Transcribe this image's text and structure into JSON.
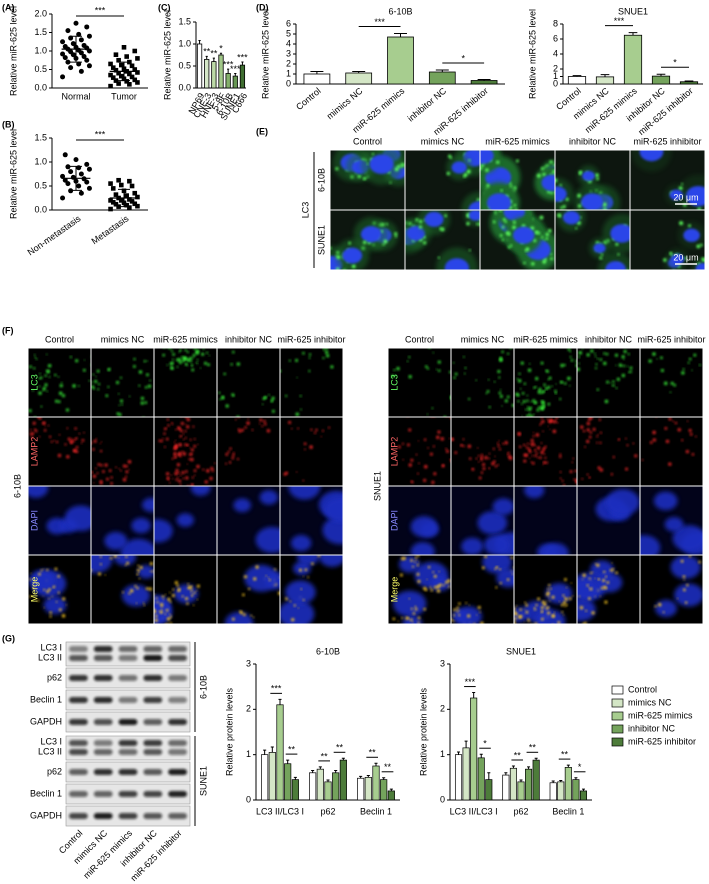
{
  "panel_labels": [
    "(A)",
    "(B)",
    "(C)",
    "(D)",
    "(E)",
    "(F)",
    "(G)"
  ],
  "chart_data": [
    {
      "type": "strip",
      "ylabel": "Relative miR-625 level",
      "categories": [
        "Normal",
        "Tumor"
      ],
      "groups": [
        {
          "marker": "circle",
          "mean": 1.05,
          "sd": 0.35,
          "values": [
            0.3,
            0.45,
            0.55,
            0.6,
            0.65,
            0.7,
            0.75,
            0.8,
            0.82,
            0.85,
            0.9,
            0.92,
            0.95,
            0.98,
            1.0,
            1.02,
            1.05,
            1.08,
            1.1,
            1.12,
            1.15,
            1.2,
            1.25,
            1.3,
            1.35,
            1.4,
            1.45,
            1.55,
            1.65,
            1.75
          ]
        },
        {
          "marker": "square",
          "mean": 0.45,
          "sd": 0.25,
          "values": [
            0.05,
            0.1,
            0.12,
            0.15,
            0.18,
            0.2,
            0.22,
            0.25,
            0.28,
            0.3,
            0.32,
            0.35,
            0.38,
            0.4,
            0.42,
            0.45,
            0.48,
            0.5,
            0.52,
            0.55,
            0.6,
            0.62,
            0.65,
            0.7,
            0.75,
            0.8,
            0.85,
            0.9,
            1.0,
            1.1
          ]
        }
      ],
      "significance": "***",
      "color": "#000000",
      "ylim": [
        0,
        2
      ],
      "yticks": [
        {
          "value": 0,
          "label": "0.0"
        },
        0.5,
        {
          "value": 1,
          "label": "1.0"
        },
        1.5,
        {
          "value": 2,
          "label": "2.0"
        }
      ]
    },
    {
      "type": "strip",
      "ylabel": "Relative miR-625 level",
      "categories": [
        "Non-metastasis",
        "Metastasis"
      ],
      "groups": [
        {
          "marker": "circle",
          "mean": 0.66,
          "sd": 0.25,
          "values": [
            0.25,
            0.35,
            0.4,
            0.45,
            0.5,
            0.55,
            0.58,
            0.6,
            0.62,
            0.65,
            0.68,
            0.7,
            0.75,
            0.8,
            0.85,
            0.88,
            0.9,
            0.95,
            1.05,
            1.15
          ]
        },
        {
          "marker": "square",
          "mean": 0.25,
          "sd": 0.18,
          "values": [
            0.02,
            0.05,
            0.07,
            0.08,
            0.1,
            0.12,
            0.13,
            0.15,
            0.16,
            0.18,
            0.2,
            0.2,
            0.22,
            0.25,
            0.27,
            0.3,
            0.32,
            0.35,
            0.4,
            0.45,
            0.5,
            0.52,
            0.55,
            0.6,
            0.62
          ]
        }
      ],
      "significance": "***",
      "color": "#000000",
      "ylim": [
        0,
        1.5
      ],
      "yticks": [
        {
          "value": 0,
          "label": "0.0"
        },
        0.5,
        {
          "value": 1,
          "label": "1.0"
        },
        1.5
      ]
    },
    {
      "type": "bar",
      "ylabel": "Relative miR-625 level",
      "categories": [
        "NP69",
        "CNE-3",
        "HNE-3",
        "5-8F",
        "6-10B",
        "SUNE1",
        "C666"
      ],
      "values": [
        1.0,
        0.65,
        0.6,
        0.75,
        0.33,
        0.27,
        0.52
      ],
      "errors": [
        0.08,
        0.07,
        0.08,
        0.04,
        0.1,
        0.06,
        0.07
      ],
      "stars": [
        null,
        "**",
        "**",
        "*",
        "***",
        "***",
        "***"
      ],
      "colors": [
        "#ffffff",
        "#d6e8c8",
        "#bcd9a6",
        "#a1c788",
        "#84b06b",
        "#679653",
        "#3f6e31"
      ],
      "ylim": [
        0,
        1.5
      ],
      "yticks": [
        {
          "value": 0,
          "label": "0.0"
        },
        0.5,
        {
          "value": 1,
          "label": "1.0"
        },
        1.5
      ]
    },
    {
      "type": "bar",
      "title": "6-10B",
      "ylabel": "Relative miR-625 level",
      "categories": [
        "Control",
        "mimics NC",
        "miR-625 mimics",
        "inhibitor NC",
        "miR-625 inhibitor"
      ],
      "values": [
        1.0,
        1.1,
        4.7,
        1.2,
        0.35
      ],
      "errors": [
        0.25,
        0.15,
        0.35,
        0.2,
        0.1
      ],
      "brackets": [
        {
          "between": [
            1,
            2
          ],
          "label": "***"
        },
        {
          "between": [
            3,
            4
          ],
          "label": "*"
        }
      ],
      "colors": [
        "#ffffff",
        "#d4e6c6",
        "#a7cd8f",
        "#74a35c",
        "#4d7c3a"
      ],
      "ylim": [
        0,
        6
      ],
      "yticks": [
        0,
        1,
        2,
        3,
        4,
        5,
        6
      ]
    },
    {
      "type": "bar",
      "title": "SNUE1",
      "ylabel": "Relative miR-625 level",
      "categories": [
        "Control",
        "mimics NC",
        "miR-625 mimics",
        "inhibitor NC",
        "miR-625 inhibitor"
      ],
      "values": [
        1.0,
        0.95,
        6.5,
        1.05,
        0.3
      ],
      "errors": [
        0.12,
        0.3,
        0.35,
        0.25,
        0.1
      ],
      "brackets": [
        {
          "between": [
            1,
            2
          ],
          "label": "***"
        },
        {
          "between": [
            3,
            4
          ],
          "label": "*"
        }
      ],
      "colors": [
        "#ffffff",
        "#d4e6c6",
        "#a7cd8f",
        "#74a35c",
        "#4d7c3a"
      ],
      "ylim": [
        0,
        8
      ],
      "yticks": [
        0,
        1,
        2,
        4,
        6,
        8
      ]
    },
    {
      "type": "grouped_bar",
      "title": "6-10B",
      "ylabel": "Relative protein levels",
      "categories": [
        "LC3 II/LC3 I",
        "p62",
        "Beclin 1"
      ],
      "series": [
        {
          "color": "#ffffff",
          "values": [
            1.0,
            0.6,
            0.48
          ],
          "errors": [
            0.1,
            0.05,
            0.04
          ]
        },
        {
          "color": "#d4e6c6",
          "values": [
            1.05,
            0.68,
            0.5
          ],
          "errors": [
            0.12,
            0.05,
            0.04
          ]
        },
        {
          "color": "#a7cd8f",
          "values": [
            2.1,
            0.4,
            0.75
          ],
          "errors": [
            0.12,
            0.04,
            0.06
          ]
        },
        {
          "color": "#74a35c",
          "values": [
            0.8,
            0.6,
            0.45
          ],
          "errors": [
            0.08,
            0.05,
            0.04
          ]
        },
        {
          "color": "#4d7c3a",
          "values": [
            0.45,
            0.88,
            0.2
          ],
          "errors": [
            0.05,
            0.04,
            0.04
          ]
        }
      ],
      "brackets": [
        {
          "category": 0,
          "between": [
            1,
            2
          ],
          "label": "***"
        },
        {
          "category": 0,
          "between": [
            3,
            4
          ],
          "label": "**"
        },
        {
          "category": 1,
          "between": [
            1,
            2
          ],
          "label": "**"
        },
        {
          "category": 1,
          "between": [
            3,
            4
          ],
          "label": "**"
        },
        {
          "category": 2,
          "between": [
            1,
            2
          ],
          "label": "**"
        },
        {
          "category": 2,
          "between": [
            3,
            4
          ],
          "label": "**"
        }
      ],
      "ylim": [
        0,
        3
      ],
      "yticks": [
        0,
        1,
        2,
        3
      ]
    },
    {
      "type": "grouped_bar",
      "title": "SNUE1",
      "ylabel": "Relative protein levels",
      "categories": [
        "LC3 II/LC3 I",
        "p62",
        "Beclin 1"
      ],
      "series": [
        {
          "name": "Control",
          "color": "#ffffff",
          "values": [
            1.0,
            0.55,
            0.38
          ],
          "errors": [
            0.06,
            0.05,
            0.04
          ]
        },
        {
          "name": "mimics NC",
          "color": "#d4e6c6",
          "values": [
            1.15,
            0.7,
            0.4
          ],
          "errors": [
            0.15,
            0.05,
            0.03
          ]
        },
        {
          "name": "miR-625 mimics",
          "color": "#a7cd8f",
          "values": [
            2.25,
            0.4,
            0.72
          ],
          "errors": [
            0.12,
            0.04,
            0.05
          ]
        },
        {
          "name": "inhibitor NC",
          "color": "#74a35c",
          "values": [
            0.93,
            0.68,
            0.45
          ],
          "errors": [
            0.08,
            0.05,
            0.04
          ]
        },
        {
          "name": "miR-625 inhibitor",
          "color": "#4d7c3a",
          "values": [
            0.45,
            0.88,
            0.2
          ],
          "errors": [
            0.15,
            0.04,
            0.04
          ]
        }
      ],
      "brackets": [
        {
          "category": 0,
          "between": [
            1,
            2
          ],
          "label": "***"
        },
        {
          "category": 0,
          "between": [
            3,
            4
          ],
          "label": "*"
        },
        {
          "category": 1,
          "between": [
            1,
            2
          ],
          "label": "**"
        },
        {
          "category": 1,
          "between": [
            3,
            4
          ],
          "label": "**"
        },
        {
          "category": 2,
          "between": [
            1,
            2
          ],
          "label": "**"
        },
        {
          "category": 2,
          "between": [
            3,
            4
          ],
          "label": "*"
        }
      ],
      "legend": "right",
      "ylim": [
        0,
        3
      ],
      "yticks": [
        0,
        1,
        2,
        3
      ]
    }
  ],
  "figure_e": {
    "columns": [
      "Control",
      "mimics NC",
      "miR-625 mimics",
      "inhibitor NC",
      "miR-625 inhibitor"
    ],
    "rows": [
      "6-10B",
      "SUNE1"
    ],
    "stain": "LC3",
    "scale_bar": "20 μm"
  },
  "figure_f": {
    "blocks": [
      {
        "cell_line": "6-10B",
        "columns": [
          "Control",
          "mimics NC",
          "miR-625 mimics",
          "inhibitor NC",
          "miR-625 inhibitor"
        ],
        "rows": [
          "LC3",
          "LAMP2",
          "DAPI",
          "Merge"
        ]
      },
      {
        "cell_line": "SNUE1",
        "columns": [
          "Control",
          "mimics NC",
          "miR-625 mimics",
          "inhibitor NC",
          "miR-625 inhibitor"
        ],
        "rows": [
          "LC3",
          "LAMP2",
          "DAPI",
          "Merge"
        ]
      }
    ]
  },
  "figure_g_blot": {
    "groups": [
      {
        "cell_line": "6-10B",
        "rows": [
          "LC3 I",
          "LC3 II",
          "p62",
          "Beclin 1",
          "GAPDH"
        ]
      },
      {
        "cell_line": "SUNE1",
        "rows": [
          "LC3 I",
          "LC3 II",
          "p62",
          "Beclin 1",
          "GAPDH"
        ]
      }
    ],
    "lanes": [
      "Control",
      "mimics NC",
      "miR-625 mimics",
      "inhibitor NC",
      "miR-625 inhibitor"
    ]
  }
}
